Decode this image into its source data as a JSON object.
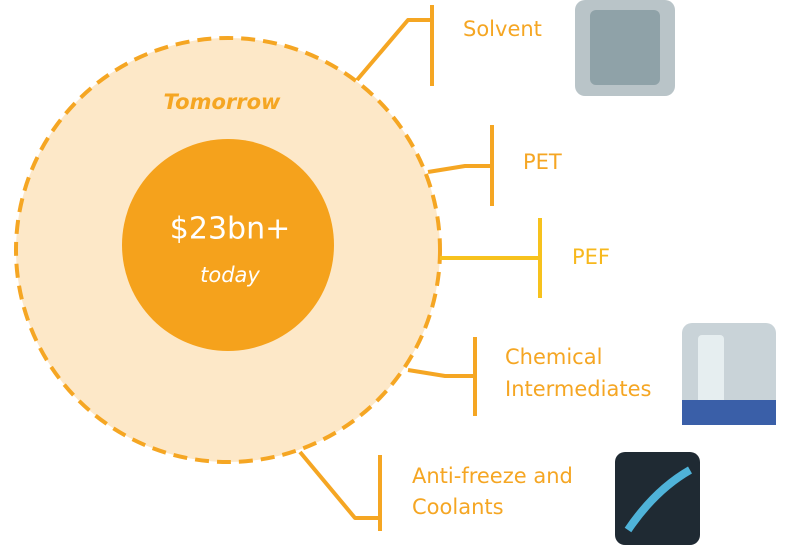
{
  "outer_label": "Tomorrow",
  "center": {
    "value": "$23bn+",
    "label": "today"
  },
  "branches": [
    {
      "lines": [
        "Solvent"
      ]
    },
    {
      "lines": [
        "PET"
      ]
    },
    {
      "lines": [
        "PEF"
      ]
    },
    {
      "lines": [
        "Chemical",
        "Intermediates"
      ]
    },
    {
      "lines": [
        "Anti-freeze and",
        "Coolants"
      ]
    }
  ]
}
